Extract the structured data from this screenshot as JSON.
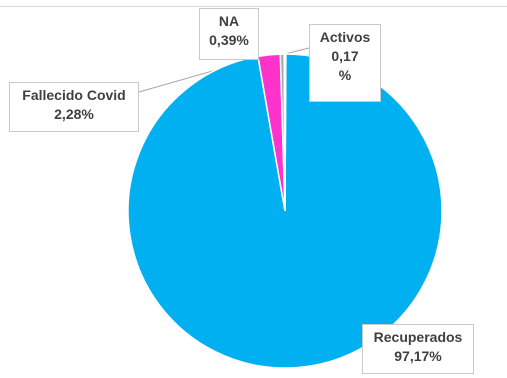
{
  "chart_data": {
    "type": "pie",
    "title": "",
    "slices": [
      {
        "label": "Recuperados",
        "value": 97.17,
        "value_text": "97,17%",
        "color": "#00b0f0"
      },
      {
        "label": "Fallecido Covid",
        "value": 2.28,
        "value_text": "2,28%",
        "color": "#ff33cc"
      },
      {
        "label": "NA",
        "value": 0.39,
        "value_text": "0,39%",
        "color": "#a6a6a6"
      },
      {
        "label": "Activos",
        "value": 0.17,
        "value_text": "0,17",
        "value_suffix": "%",
        "color": "#ffff00"
      }
    ],
    "legend": "none",
    "data_labels": "callout-boxes"
  }
}
